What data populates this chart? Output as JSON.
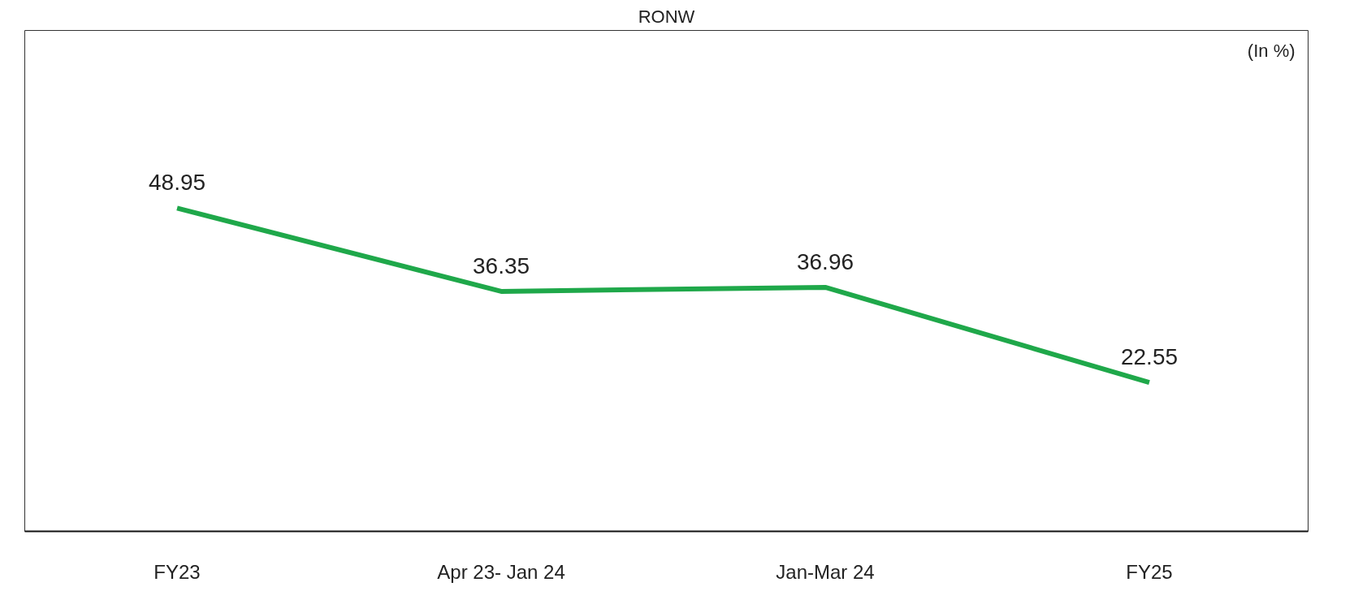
{
  "chart_data": {
    "type": "line",
    "title": "RONW",
    "annotations": [
      "(In %)"
    ],
    "categories": [
      "FY23",
      "Apr 23- Jan 24",
      "Jan-Mar 24",
      "FY25"
    ],
    "series": [
      {
        "color": "#1fa84a",
        "values": [
          48.95,
          36.35,
          36.96,
          22.55
        ]
      }
    ],
    "data_labels": true,
    "grid": false,
    "marker": "none",
    "line_style": "solid",
    "tick_labels": "x"
  }
}
